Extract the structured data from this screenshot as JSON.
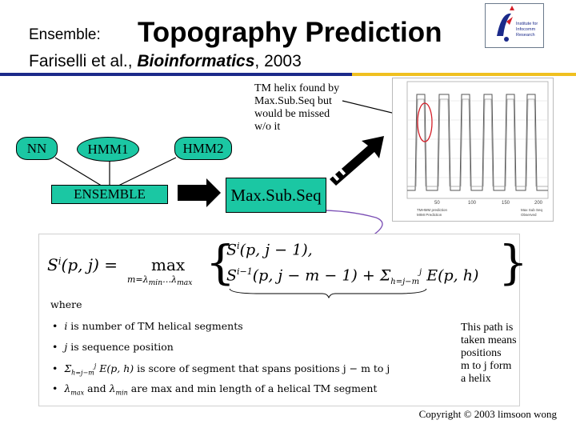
{
  "header": {
    "prefix": "Ensemble:",
    "title": "Topography Prediction",
    "authors": "Fariselli et al., ",
    "journal": "Bioinformatics",
    "year": ", 2003"
  },
  "logo": {
    "line1": "Institute for",
    "line2": "Infocomm Research"
  },
  "colors": {
    "model_fill": "#1bc7a3",
    "rule_left": "#1b2a8a",
    "rule_right": "#f0c020",
    "connector": "#7b4fb5"
  },
  "diagram": {
    "models": [
      "NN",
      "HMM1",
      "HMM2"
    ],
    "ensemble": "ENSEMBLE",
    "maxsubseq": "Max.Sub.Seq"
  },
  "annotations": {
    "tm_helix": [
      "TM helix found by",
      "Max.Sub.Seq but",
      "would be missed",
      "w/o it"
    ],
    "path": [
      "This path is",
      "taken means",
      "positions",
      "m to j form",
      "a helix"
    ]
  },
  "chart": {
    "x_ticks": [
      "50",
      "100",
      "150",
      "200"
    ],
    "legend_left": [
      "TMHMM prediction",
      "MIMI Prediction"
    ],
    "legend_right": [
      "Max Sub Seq",
      "Observed"
    ]
  },
  "formula": {
    "lhs": "S",
    "max": "max",
    "where": "where",
    "bullets": [
      [
        "i",
        " is number of TM helical segments"
      ],
      [
        "j",
        " is sequence position"
      ],
      [
        "",
        " is score of segment that spans positions j − m to j"
      ],
      [
        "",
        " are max and min length of a helical TM segment"
      ]
    ]
  },
  "footer": {
    "copyright": "Copyright © 2003 limsoon wong"
  }
}
